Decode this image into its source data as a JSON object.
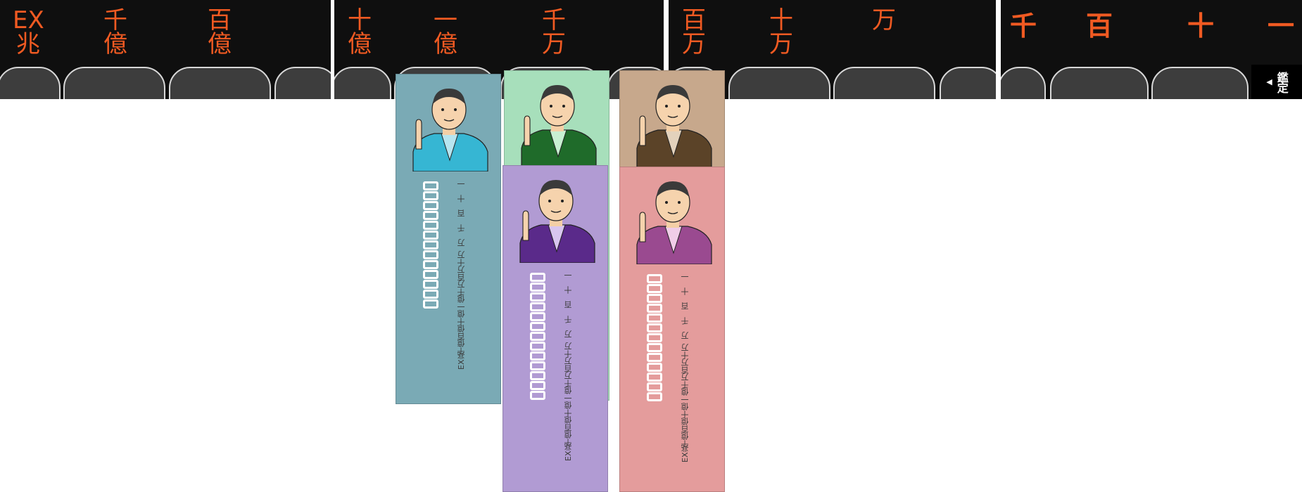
{
  "panels": [
    {
      "digits": [
        "EX\n兆",
        "千\n億",
        "百\n億"
      ]
    },
    {
      "digits": [
        "十\n億",
        "一\n億",
        "千\n万"
      ]
    },
    {
      "digits": [
        "百\n万",
        "十\n万",
        "万"
      ]
    },
    {
      "digits": [
        "千",
        "百",
        "十",
        "一"
      ]
    }
  ],
  "appraise_label": "鑑定",
  "card_places": [
    "EX兆",
    "千億",
    "百億",
    "十億",
    "一億",
    "千万",
    "百万",
    "十万",
    "万",
    "千",
    "百",
    "十",
    "一"
  ],
  "cards": [
    {
      "name": "blue-robed-appraiser",
      "bg": "#7aaab5",
      "robe": "#36b6d3",
      "inner": "#b7e5f0"
    },
    {
      "name": "green-robed-appraiser",
      "bg": "#a7dfbb",
      "robe": "#1f6b2a",
      "inner": "#c8f0d2"
    },
    {
      "name": "brown-robed-appraiser",
      "bg": "#c7a88c",
      "robe": "#5b4328",
      "inner": "#e3d2bc"
    },
    {
      "name": "purple-robed-appraiser",
      "bg": "#b19bd3",
      "robe": "#5a2a8a",
      "inner": "#d8c6ef"
    },
    {
      "name": "pink-robed-appraiser",
      "bg": "#e49c9c",
      "robe": "#9a4a90",
      "inner": "#f0cde8"
    }
  ],
  "colors": {
    "digit": "#f05a22",
    "panel": "#0f0f0f"
  }
}
